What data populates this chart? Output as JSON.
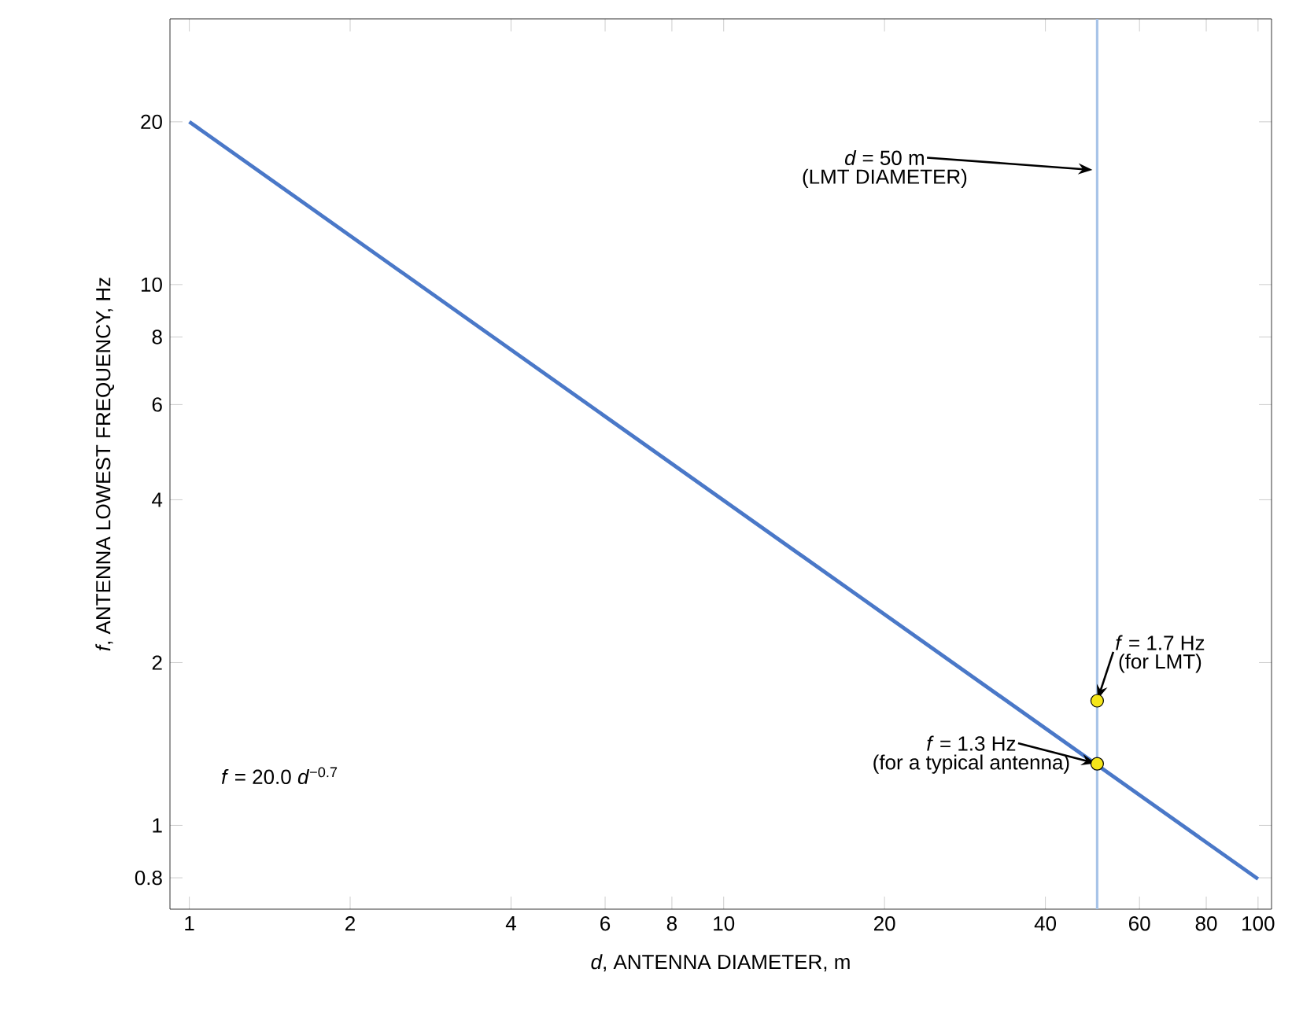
{
  "chart_data": {
    "type": "line",
    "xlabel": "*d*, ANTENNA DIAMETER, m",
    "ylabel": "*f*, ANTENNA LOWEST FREQUENCY, Hz",
    "log": "xy",
    "xlim": [
      0.92,
      106
    ],
    "ylim": [
      0.7,
      31
    ],
    "xticks": [
      1,
      2,
      4,
      6,
      8,
      10,
      20,
      40,
      60,
      80,
      100
    ],
    "yticks": [
      0.8,
      1,
      2,
      4,
      6,
      8,
      10,
      20
    ],
    "series": [
      {
        "type": "line",
        "color": "#4a78c8",
        "x": [
          1,
          100
        ],
        "values": [
          20,
          0.796
        ]
      },
      {
        "type": "scatter",
        "color": "#f5e61a",
        "marker": "circle",
        "x": [
          50,
          50
        ],
        "values": [
          1.7,
          1.3
        ]
      }
    ],
    "ref_lines": [
      {
        "axis": "x",
        "value": 50,
        "color": "#a8c4e8"
      }
    ],
    "annotations": [
      "*d* = 50 m",
      "(LMT DIAMETER)",
      {
        "text": "*f* = 1.7 Hz",
        "x": 50,
        "y": 1.7
      },
      "(for LMT)",
      {
        "text": "*f* = 1.3 Hz",
        "x": 50,
        "y": 1.3
      },
      "(for a typical antenna)",
      "*f* = 20.0 *d*$^{−0.7}$"
    ]
  }
}
